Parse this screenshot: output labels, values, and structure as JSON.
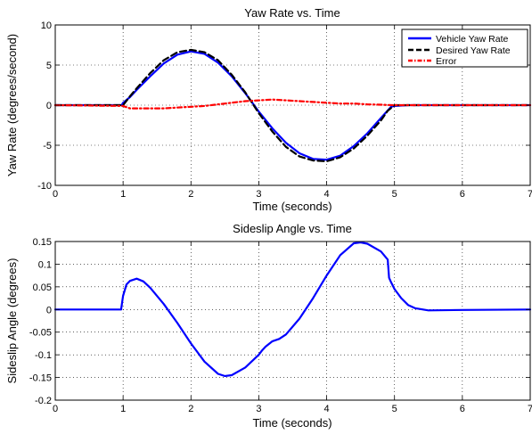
{
  "chart_data": [
    {
      "type": "line",
      "title": "Yaw Rate vs. Time",
      "xlabel": "Time (seconds)",
      "ylabel": "Yaw Rate (degrees/second)",
      "xlim": [
        0,
        7
      ],
      "ylim": [
        -10,
        10
      ],
      "xticks": [
        0,
        1,
        2,
        3,
        4,
        5,
        6,
        7
      ],
      "yticks": [
        -10,
        -5,
        0,
        5,
        10
      ],
      "grid": true,
      "legend_position": "top-right",
      "series": [
        {
          "name": "Vehicle Yaw Rate",
          "color": "#0000ff",
          "style": "solid",
          "x": [
            0,
            0.98,
            1.0,
            1.1,
            1.2,
            1.4,
            1.6,
            1.8,
            2.0,
            2.2,
            2.4,
            2.6,
            2.8,
            3.0,
            3.2,
            3.4,
            3.6,
            3.8,
            4.0,
            4.2,
            4.4,
            4.6,
            4.8,
            4.95,
            5.0,
            5.2,
            7
          ],
          "y": [
            0,
            0,
            0.3,
            1.0,
            1.9,
            3.6,
            5.2,
            6.3,
            6.7,
            6.4,
            5.3,
            3.6,
            1.5,
            -0.8,
            -2.9,
            -4.7,
            -6.0,
            -6.7,
            -6.8,
            -6.3,
            -5.1,
            -3.5,
            -1.6,
            -0.2,
            -0.1,
            0,
            0
          ]
        },
        {
          "name": "Desired Yaw Rate",
          "color": "#000000",
          "style": "dashed",
          "x": [
            0,
            1.0,
            1.1,
            1.2,
            1.4,
            1.6,
            1.8,
            2.0,
            2.2,
            2.4,
            2.6,
            2.8,
            3.0,
            3.2,
            3.4,
            3.6,
            3.8,
            4.0,
            4.2,
            4.4,
            4.6,
            4.8,
            4.9,
            5.0,
            7
          ],
          "y": [
            0,
            0,
            1.1,
            2.1,
            4.0,
            5.6,
            6.6,
            6.9,
            6.6,
            5.6,
            3.8,
            1.6,
            -1.0,
            -3.3,
            -5.2,
            -6.4,
            -6.9,
            -7.0,
            -6.5,
            -5.4,
            -3.8,
            -1.9,
            -0.7,
            0,
            0
          ]
        },
        {
          "name": "Error",
          "color": "#ff0000",
          "style": "dashdot",
          "x": [
            0,
            1.0,
            1.1,
            1.2,
            1.4,
            1.6,
            1.8,
            2.0,
            2.2,
            2.4,
            2.6,
            2.8,
            3.0,
            3.2,
            3.4,
            3.6,
            3.8,
            4.0,
            4.2,
            4.4,
            4.6,
            4.8,
            4.9,
            5.0,
            7
          ],
          "y": [
            0,
            -0.1,
            -0.4,
            -0.4,
            -0.4,
            -0.4,
            -0.3,
            -0.2,
            -0.1,
            0.1,
            0.3,
            0.5,
            0.6,
            0.7,
            0.6,
            0.5,
            0.4,
            0.3,
            0.2,
            0.2,
            0.1,
            0.05,
            0.02,
            0,
            0
          ]
        }
      ]
    },
    {
      "type": "line",
      "title": "Sideslip Angle vs. Time",
      "xlabel": "Time (seconds)",
      "ylabel": "Sideslip Angle (degrees)",
      "xlim": [
        0,
        7
      ],
      "ylim": [
        -0.2,
        0.15
      ],
      "xticks": [
        0,
        1,
        2,
        3,
        4,
        5,
        6,
        7
      ],
      "yticks": [
        -0.2,
        -0.15,
        -0.1,
        -0.05,
        0,
        0.05,
        0.1,
        0.15
      ],
      "grid": true,
      "series": [
        {
          "color": "#0000ff",
          "style": "solid",
          "x": [
            0,
            0.97,
            1.0,
            1.05,
            1.1,
            1.2,
            1.3,
            1.4,
            1.6,
            1.8,
            2.0,
            2.2,
            2.4,
            2.5,
            2.6,
            2.8,
            3.0,
            3.05,
            3.1,
            3.2,
            3.3,
            3.4,
            3.6,
            3.8,
            4.0,
            4.2,
            4.4,
            4.5,
            4.6,
            4.8,
            4.9,
            4.92,
            4.95,
            5.0,
            5.1,
            5.2,
            5.3,
            5.5,
            6.0,
            7
          ],
          "y": [
            0,
            0,
            0.03,
            0.055,
            0.063,
            0.068,
            0.062,
            0.048,
            0.012,
            -0.03,
            -0.075,
            -0.115,
            -0.142,
            -0.147,
            -0.145,
            -0.128,
            -0.1,
            -0.09,
            -0.082,
            -0.07,
            -0.065,
            -0.055,
            -0.02,
            0.025,
            0.075,
            0.12,
            0.146,
            0.148,
            0.145,
            0.128,
            0.11,
            0.07,
            0.06,
            0.045,
            0.025,
            0.01,
            0.003,
            -0.002,
            -0.001,
            0
          ]
        }
      ]
    }
  ]
}
